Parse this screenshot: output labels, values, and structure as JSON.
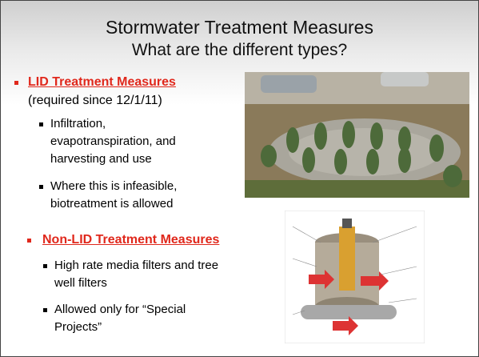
{
  "slide": {
    "title": "Stormwater Treatment Measures",
    "subtitle": "What are the different types?",
    "sections": [
      {
        "heading": "LID Treatment Measures",
        "note": "(required since 12/1/11)",
        "items": [
          {
            "lines": [
              "Infiltration,",
              "evapotranspiration, and",
              "harvesting and use"
            ]
          },
          {
            "lines": [
              "Where this is infeasible,",
              "biotreatment is allowed"
            ]
          }
        ]
      },
      {
        "heading": "Non-LID Treatment Measures",
        "items": [
          {
            "lines": [
              "High rate media filters and tree",
              "well filters"
            ]
          },
          {
            "lines": [
              "Allowed only for “Special",
              "Projects”"
            ]
          }
        ]
      }
    ]
  }
}
